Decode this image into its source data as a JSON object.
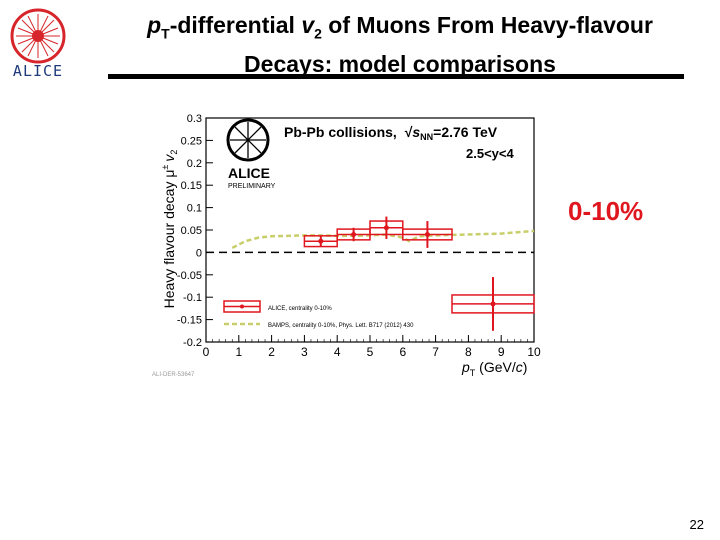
{
  "slide": {
    "title_p": "p",
    "title_T": "T",
    "title_mid": "-differential ",
    "title_v": "v",
    "title_2": "2",
    "title_rest": " of Muons From Heavy-flavour",
    "title_line2": "Decays: model comparisons",
    "logo_text": "ALICE",
    "centrality_label": "0-10%",
    "slide_number": "22"
  },
  "colors": {
    "data": "#e0161f",
    "model": "#c8cf6a",
    "zero_line": "#000000",
    "logo": "#d7262b"
  },
  "chart_data": {
    "type": "scatter",
    "ylabel_main": "Heavy flavour decay  μ",
    "ylabel_sup": "±",
    "ylabel_v": "v",
    "ylabel_sub": "2",
    "xlabel_p": "p",
    "xlabel_T": "T",
    "xlabel_unit": " (GeV/",
    "xlabel_c": "c",
    "xlabel_close": ")",
    "xlim": [
      0,
      10
    ],
    "ylim": [
      -0.2,
      0.3
    ],
    "xticks": [
      "0",
      "1",
      "2",
      "3",
      "4",
      "5",
      "6",
      "7",
      "8",
      "9",
      "10"
    ],
    "yticks": [
      "-0.2",
      "-0.15",
      "-0.1",
      "-0.05",
      "0",
      "0.05",
      "0.1",
      "0.15",
      "0.2",
      "0.25",
      "0.3"
    ],
    "x_minor_ticks": true,
    "zero_line": "dashed",
    "annotation_system": "Pb-Pb collisions,",
    "annotation_energy_sqrt": "√",
    "annotation_energy_s": "s",
    "annotation_energy_sub": "NN",
    "annotation_energy_val": "=2.76 TeV",
    "annotation_rapidity": "2.5<y<4",
    "logo_text": "ALICE",
    "logo_sub": "PRELIMINARY",
    "figure_id": "ALI-DER-53647",
    "series": [
      {
        "name": "ALICE, centrality 0-10%",
        "points": [
          {
            "x": 3.5,
            "y": 0.025,
            "xerr": 0.5,
            "stat": 0.012,
            "sys": 0.012
          },
          {
            "x": 4.5,
            "y": 0.04,
            "xerr": 0.5,
            "stat": 0.015,
            "sys": 0.012
          },
          {
            "x": 5.5,
            "y": 0.055,
            "xerr": 0.5,
            "stat": 0.025,
            "sys": 0.015
          },
          {
            "x": 6.75,
            "y": 0.04,
            "xerr": 0.75,
            "stat": 0.03,
            "sys": 0.012
          },
          {
            "x": 8.75,
            "y": -0.115,
            "xerr": 1.25,
            "stat": 0.06,
            "sys": 0.02
          }
        ]
      },
      {
        "name": "BAMPS, centrality 0-10%, Phys. Lett. B717 (2012) 430",
        "points": [
          [
            0.8,
            0.01
          ],
          [
            1.2,
            0.025
          ],
          [
            1.6,
            0.033
          ],
          [
            2.0,
            0.036
          ],
          [
            2.5,
            0.037
          ],
          [
            3.0,
            0.038
          ],
          [
            3.5,
            0.038
          ],
          [
            4.0,
            0.037
          ],
          [
            4.5,
            0.037
          ],
          [
            5.0,
            0.038
          ],
          [
            5.5,
            0.04
          ],
          [
            6.0,
            0.033
          ],
          [
            6.2,
            0.025
          ],
          [
            6.5,
            0.036
          ],
          [
            7.0,
            0.038
          ],
          [
            7.5,
            0.039
          ],
          [
            8.0,
            0.04
          ],
          [
            8.5,
            0.041
          ],
          [
            9.0,
            0.042
          ],
          [
            9.5,
            0.045
          ],
          [
            10.0,
            0.048
          ]
        ]
      }
    ]
  }
}
